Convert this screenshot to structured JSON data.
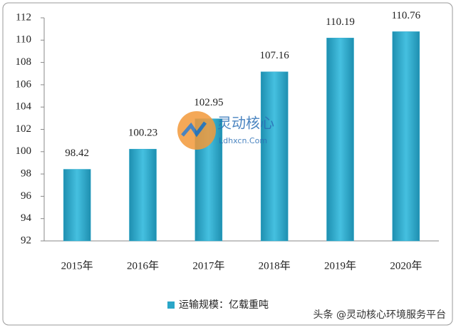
{
  "chart_data": {
    "type": "bar",
    "categories": [
      "2015年",
      "2016年",
      "2017年",
      "2018年",
      "2019年",
      "2020年"
    ],
    "series": [
      {
        "name": "运输规模：亿载重吨",
        "color": "#2aa6c8",
        "values": [
          98.42,
          100.23,
          102.95,
          107.16,
          110.19,
          110.76
        ]
      }
    ],
    "ylim": [
      92,
      112
    ],
    "yticks": [
      92,
      94,
      96,
      98,
      100,
      102,
      104,
      106,
      108,
      110,
      112
    ],
    "grid": false,
    "legend": "bottom"
  },
  "watermark": {
    "title": "灵动核心",
    "subtitle": "Ldhxcn.Com"
  },
  "footer": "头条 @灵动核心环境服务平台"
}
